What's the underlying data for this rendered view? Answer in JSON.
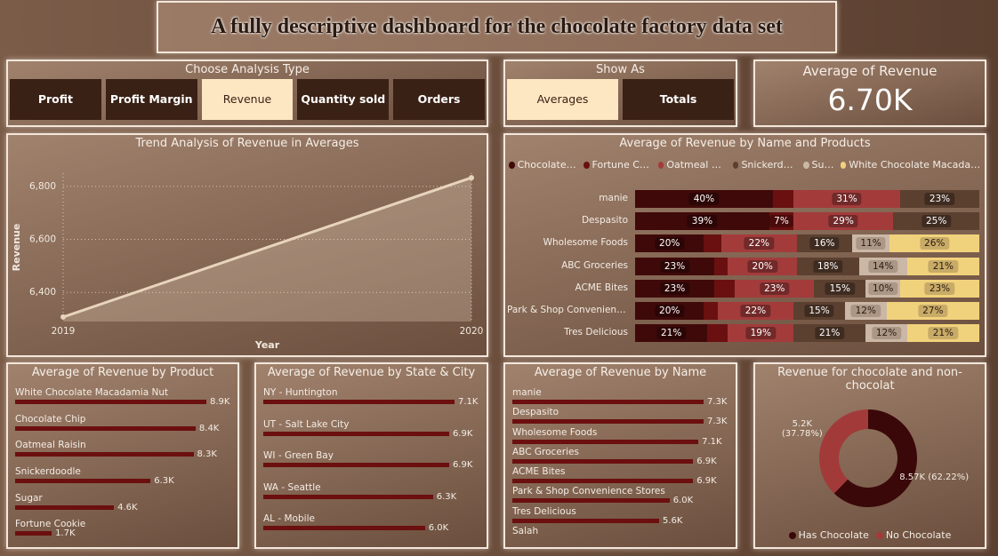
{
  "header": {
    "title": "A fully descriptive dashboard for the chocolate factory data set"
  },
  "analysis": {
    "title": "Choose Analysis Type",
    "options": [
      "Profit",
      "Profit Margin",
      "Revenue",
      "Quantity sold",
      "Orders"
    ],
    "selected": 2
  },
  "show_as": {
    "title": "Show As",
    "options": [
      "Averages",
      "Totals"
    ],
    "selected": 0
  },
  "kpi": {
    "title": "Average of Revenue",
    "value": "6.70K"
  },
  "chart_data": [
    {
      "type": "line",
      "title": "Trend Analysis of Revenue in Averages",
      "x_label": "Year",
      "y_label": "Revenue",
      "categories": [
        "2019",
        "2020"
      ],
      "values": [
        6307,
        6833
      ],
      "color": "#e8d4bc",
      "ylim": [
        6290,
        6850
      ],
      "yticks": [
        {
          "value": 6400,
          "label": "6,400"
        },
        {
          "value": 6600,
          "label": "6,600"
        },
        {
          "value": 6800,
          "label": "6,800"
        }
      ],
      "grid": true
    },
    {
      "type": "stacked_bar",
      "title": "Average of Revenue by Name and Products",
      "categories": [
        "manie",
        "Despasito",
        "Wholesome Foods",
        "ABC Groceries",
        "ACME Bites",
        "Park & Shop Convenience Stores",
        "Tres Delicious"
      ],
      "series": [
        {
          "name": "Chocolate Chip",
          "color": "#3f0909",
          "values": [
            40,
            39,
            20,
            23,
            23,
            20,
            21
          ],
          "value_labels": [
            "40%",
            "39%",
            "20%",
            "23%",
            "23%",
            "20%",
            "21%"
          ]
        },
        {
          "name": "Fortune Cookie",
          "color": "#6a1010",
          "values": [
            6,
            7,
            5,
            4,
            6,
            4,
            6
          ],
          "value_labels": [
            null,
            "7%",
            null,
            null,
            null,
            null,
            null
          ]
        },
        {
          "name": "Oatmeal Raisin",
          "color": "#a33b3b",
          "values": [
            31,
            29,
            22,
            20,
            23,
            22,
            19
          ],
          "value_labels": [
            "31%",
            "29%",
            "22%",
            "20%",
            "23%",
            "22%",
            "19%"
          ]
        },
        {
          "name": "Snickerdoodle",
          "color": "#5b4030",
          "values": [
            23,
            25,
            16,
            18,
            15,
            15,
            21
          ],
          "value_labels": [
            "23%",
            "25%",
            "16%",
            "18%",
            "15%",
            "15%",
            "21%"
          ]
        },
        {
          "name": "Sugar",
          "color": "#cbb7a6",
          "values": [
            0,
            0,
            11,
            14,
            10,
            12,
            12
          ],
          "value_labels": [
            null,
            null,
            "11%",
            "14%",
            "10%",
            "12%",
            "12%"
          ]
        },
        {
          "name": "White Chocolate Macadamia Nut",
          "color": "#f1d27c",
          "values": [
            0,
            0,
            26,
            21,
            23,
            27,
            21
          ],
          "value_labels": [
            null,
            null,
            "26%",
            "21%",
            "23%",
            "27%",
            "21%"
          ]
        }
      ]
    },
    {
      "type": "bar",
      "title": "Average of Revenue by Product",
      "color": "#6b0f0f",
      "categories": [
        "White Chocolate Macadamia Nut",
        "Chocolate Chip",
        "Oatmeal Raisin",
        "Snickerdoodle",
        "Sugar",
        "Fortune Cookie"
      ],
      "values": [
        8900,
        8400,
        8300,
        6300,
        4600,
        1700
      ],
      "value_labels": [
        "8.9K",
        "8.4K",
        "8.3K",
        "6.3K",
        "4.6K",
        "1.7K"
      ]
    },
    {
      "type": "bar",
      "title": "Average of Revenue by State & City",
      "color": "#6b0f0f",
      "categories": [
        "NY - Huntington",
        "UT - Salt Lake City",
        "WI - Green Bay",
        "WA - Seattle",
        "AL - Mobile"
      ],
      "values": [
        7100,
        6900,
        6900,
        6300,
        6000
      ],
      "value_labels": [
        "7.1K",
        "6.9K",
        "6.9K",
        "6.3K",
        "6.0K"
      ]
    },
    {
      "type": "bar",
      "title": "Average of Revenue by Name",
      "color": "#6b0f0f",
      "categories": [
        "manie",
        "Despasito",
        "Wholesome Foods",
        "ABC Groceries",
        "ACME Bites",
        "Park & Shop Convenience Stores",
        "Tres Delicious",
        "Salah"
      ],
      "values": [
        7300,
        7300,
        7100,
        6900,
        6900,
        6000,
        5600,
        null
      ],
      "value_labels": [
        "7.3K",
        "7.3K",
        "7.1K",
        "6.9K",
        "6.9K",
        "6.0K",
        "5.6K",
        null
      ]
    },
    {
      "type": "donut",
      "title": "Revenue for chocolate and non-chocolat",
      "categories": [
        "Has Chocolate",
        "No Chocolate"
      ],
      "values": [
        8570,
        5200
      ],
      "colors": [
        "#3a0808",
        "#a33a3a"
      ],
      "value_labels": [
        "8.57K (62.22%)",
        "5.2K (37.78%)"
      ]
    }
  ]
}
